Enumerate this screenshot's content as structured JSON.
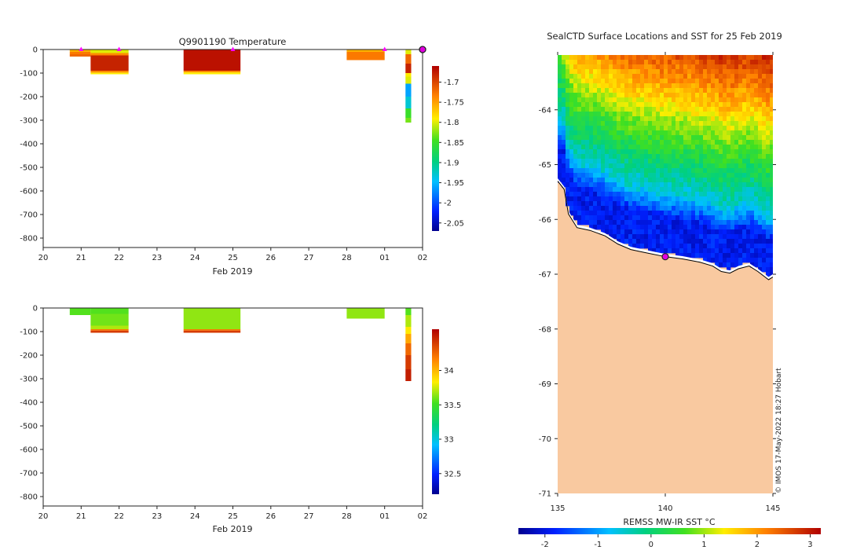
{
  "chart_data": [
    {
      "type": "heatmap",
      "name": "temperature-section",
      "title": "Q9901190  Temperature",
      "xlabel": "Feb 2019",
      "ylabel": "",
      "x_ticks": [
        "20",
        "21",
        "22",
        "23",
        "24",
        "25",
        "26",
        "27",
        "28",
        "01",
        "02"
      ],
      "x_range_days": [
        20,
        30
      ],
      "y_ticks": [
        0,
        -100,
        -200,
        -300,
        -400,
        -500,
        -600,
        -700,
        -800
      ],
      "ylim": [
        -840,
        0
      ],
      "profiles": [
        {
          "start": 20.7,
          "end": 21.25,
          "depth": 30,
          "layers": [
            {
              "to": 10,
              "value": -1.76
            },
            {
              "to": 20,
              "value": -1.73
            },
            {
              "to": 30,
              "value": -1.72
            }
          ]
        },
        {
          "start": 21.25,
          "end": 22.25,
          "depth": 105,
          "layers": [
            {
              "to": 15,
              "value": -1.8
            },
            {
              "to": 25,
              "value": -1.74
            },
            {
              "to": 90,
              "value": -1.68
            },
            {
              "to": 98,
              "value": -1.74
            },
            {
              "to": 105,
              "value": -1.79
            }
          ]
        },
        {
          "start": 23.7,
          "end": 25.2,
          "depth": 105,
          "layers": [
            {
              "to": 90,
              "value": -1.67
            },
            {
              "to": 97,
              "value": -1.74
            },
            {
              "to": 105,
              "value": -1.79
            }
          ]
        },
        {
          "start": 28.0,
          "end": 29.0,
          "depth": 45,
          "layers": [
            {
              "to": 10,
              "value": -1.76
            },
            {
              "to": 45,
              "value": -1.73
            }
          ]
        },
        {
          "start": 29.55,
          "end": 29.7,
          "depth": 310,
          "layers": [
            {
              "to": 20,
              "value": -1.8
            },
            {
              "to": 60,
              "value": -1.72
            },
            {
              "to": 100,
              "value": -1.68
            },
            {
              "to": 115,
              "value": -1.79
            },
            {
              "to": 145,
              "value": -1.8
            },
            {
              "to": 200,
              "value": -1.96
            },
            {
              "to": 250,
              "value": -1.93
            },
            {
              "to": 290,
              "value": -1.85
            },
            {
              "to": 310,
              "value": -1.83
            }
          ]
        }
      ],
      "surface_markers_days": [
        21.0,
        22.0,
        25.0,
        29.0
      ],
      "current_marker_day": 30.0,
      "colorbar": {
        "ticks": [
          "-1.7",
          "-1.75",
          "-1.8",
          "-1.85",
          "-1.9",
          "-1.95",
          "-2",
          "-2.05"
        ],
        "tick_values": [
          -1.7,
          -1.75,
          -1.8,
          -1.85,
          -1.9,
          -1.95,
          -2.0,
          -2.05
        ],
        "range": [
          -2.07,
          -1.66
        ]
      }
    },
    {
      "type": "heatmap",
      "name": "salinity-section",
      "title": "",
      "xlabel": "Feb 2019",
      "x_ticks": [
        "20",
        "21",
        "22",
        "23",
        "24",
        "25",
        "26",
        "27",
        "28",
        "01",
        "02"
      ],
      "x_range_days": [
        20,
        30
      ],
      "y_ticks": [
        0,
        -100,
        -200,
        -300,
        -400,
        -500,
        -600,
        -700,
        -800
      ],
      "ylim": [
        -840,
        0
      ],
      "profiles": [
        {
          "start": 20.7,
          "end": 21.25,
          "depth": 30,
          "layers": [
            {
              "to": 30,
              "value": 33.55
            }
          ]
        },
        {
          "start": 21.25,
          "end": 22.25,
          "depth": 105,
          "layers": [
            {
              "to": 25,
              "value": 33.55
            },
            {
              "to": 75,
              "value": 33.6
            },
            {
              "to": 90,
              "value": 33.7
            },
            {
              "to": 96,
              "value": 34.2
            },
            {
              "to": 105,
              "value": 34.4
            }
          ]
        },
        {
          "start": 23.7,
          "end": 25.2,
          "depth": 105,
          "layers": [
            {
              "to": 90,
              "value": 33.65
            },
            {
              "to": 96,
              "value": 34.2
            },
            {
              "to": 105,
              "value": 34.4
            }
          ]
        },
        {
          "start": 28.0,
          "end": 29.0,
          "depth": 45,
          "layers": [
            {
              "to": 45,
              "value": 33.65
            }
          ]
        },
        {
          "start": 29.55,
          "end": 29.7,
          "depth": 310,
          "layers": [
            {
              "to": 30,
              "value": 33.55
            },
            {
              "to": 80,
              "value": 33.7
            },
            {
              "to": 110,
              "value": 33.85
            },
            {
              "to": 150,
              "value": 34.05
            },
            {
              "to": 200,
              "value": 34.25
            },
            {
              "to": 260,
              "value": 34.4
            },
            {
              "to": 310,
              "value": 34.5
            }
          ]
        }
      ],
      "colorbar": {
        "ticks": [
          "34",
          "33.5",
          "33",
          "32.5"
        ],
        "tick_values": [
          34,
          33.5,
          33,
          32.5
        ],
        "range": [
          32.2,
          34.6
        ]
      }
    },
    {
      "type": "heatmap",
      "name": "sst-map",
      "title": "SealCTD Surface Locations and SST for 25 Feb 2019",
      "x_ticks": [
        "135",
        "140",
        "145"
      ],
      "x_values": [
        135,
        140,
        145
      ],
      "xlim": [
        135,
        145
      ],
      "y_ticks": [
        "-64",
        "-65",
        "-66",
        "-67",
        "-68",
        "-69",
        "-70",
        "-71"
      ],
      "y_values": [
        -64,
        -65,
        -66,
        -67,
        -68,
        -69,
        -70,
        -71
      ],
      "ylim": [
        -71,
        -63
      ],
      "coastline": [
        [
          135,
          -65.3
        ],
        [
          135.3,
          -65.45
        ],
        [
          135.5,
          -65.9
        ],
        [
          135.9,
          -66.15
        ],
        [
          136.5,
          -66.2
        ],
        [
          137.2,
          -66.3
        ],
        [
          137.8,
          -66.45
        ],
        [
          138.4,
          -66.55
        ],
        [
          139.0,
          -66.6
        ],
        [
          140.0,
          -66.68
        ],
        [
          140.8,
          -66.72
        ],
        [
          141.6,
          -66.78
        ],
        [
          142.2,
          -66.85
        ],
        [
          142.6,
          -66.95
        ],
        [
          143.0,
          -66.98
        ],
        [
          143.4,
          -66.9
        ],
        [
          143.9,
          -66.85
        ],
        [
          144.3,
          -66.95
        ],
        [
          144.8,
          -67.1
        ],
        [
          145,
          -67.05
        ]
      ],
      "current_location": {
        "lon": 140.0,
        "lat": -66.68
      },
      "colorbar_label": "REMSS MW-IR SST °C",
      "colorbar": {
        "ticks": [
          "-2",
          "-1",
          "0",
          "1",
          "2",
          "3"
        ],
        "tick_values": [
          -2,
          -1,
          0,
          1,
          2,
          3
        ],
        "range": [
          -2.5,
          3.2
        ]
      },
      "credit": "© IMOS 17-May-2022 18:27 Hobart"
    }
  ]
}
